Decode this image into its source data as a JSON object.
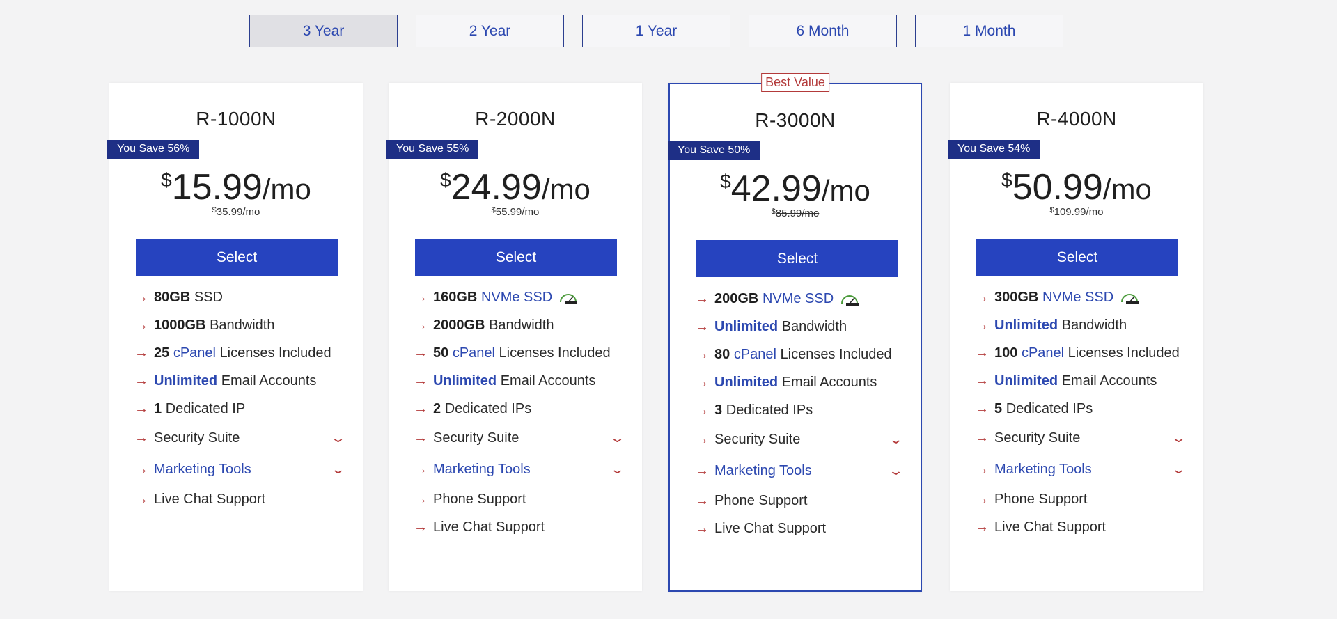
{
  "terms": [
    {
      "label": "3 Year",
      "active": true
    },
    {
      "label": "2 Year",
      "active": false
    },
    {
      "label": "1 Year",
      "active": false
    },
    {
      "label": "6 Month",
      "active": false
    },
    {
      "label": "1 Month",
      "active": false
    }
  ],
  "colors": {
    "accent": "#2643bf",
    "badge": "#1e2f86",
    "arrow": "#b33a3a",
    "link": "#2c48b0"
  },
  "plans": [
    {
      "name": "R-1000N",
      "save": "You Save 56%",
      "currency": "$",
      "price": "15.99",
      "per": "/mo",
      "old_price": "35.99/mo",
      "select_label": "Select",
      "f1_bold": "80GB",
      "f1_text": "SSD",
      "f2_bold": "1000GB",
      "f2_text": "Bandwidth",
      "f3_bold": "25",
      "f3_link": "cPanel",
      "f3_text": "Licenses Included",
      "f4_bold": "Unlimited",
      "f4_text": "Email Accounts",
      "f5_bold": "1",
      "f5_text": "Dedicated IP",
      "f6_text": "Security Suite",
      "f7_text": "Marketing Tools",
      "f8_text": "Live Chat Support"
    },
    {
      "name": "R-2000N",
      "save": "You Save 55%",
      "currency": "$",
      "price": "24.99",
      "per": "/mo",
      "old_price": "55.99/mo",
      "select_label": "Select",
      "f1_bold": "160GB",
      "f1_link": "NVMe SSD",
      "speed_icon": "speed-gauge-icon",
      "f2_bold": "2000GB",
      "f2_text": "Bandwidth",
      "f3_bold": "50",
      "f3_link": "cPanel",
      "f3_text": "Licenses Included",
      "f4_bold": "Unlimited",
      "f4_text": "Email Accounts",
      "f5_bold": "2",
      "f5_text": "Dedicated IPs",
      "f6_text": "Security Suite",
      "f7_text": "Marketing Tools",
      "f8_text": "Phone Support",
      "f9_text": "Live Chat Support"
    },
    {
      "name": "R-3000N",
      "save": "You Save 50%",
      "best_value": "Best Value",
      "currency": "$",
      "price": "42.99",
      "per": "/mo",
      "old_price": "85.99/mo",
      "select_label": "Select",
      "f1_bold": "200GB",
      "f1_link": "NVMe SSD",
      "speed_icon": "speed-gauge-icon",
      "f2_bold": "Unlimited",
      "f2_text": "Bandwidth",
      "f3_bold": "80",
      "f3_link": "cPanel",
      "f3_text": "Licenses Included",
      "f4_bold": "Unlimited",
      "f4_text": "Email Accounts",
      "f5_bold": "3",
      "f5_text": "Dedicated IPs",
      "f6_text": "Security Suite",
      "f7_text": "Marketing Tools",
      "f8_text": "Phone Support",
      "f9_text": "Live Chat Support"
    },
    {
      "name": "R-4000N",
      "save": "You Save 54%",
      "currency": "$",
      "price": "50.99",
      "per": "/mo",
      "old_price": "109.99/mo",
      "select_label": "Select",
      "f1_bold": "300GB",
      "f1_link": "NVMe SSD",
      "speed_icon": "speed-gauge-icon",
      "f2_bold": "Unlimited",
      "f2_text": "Bandwidth",
      "f3_bold": "100",
      "f3_link": "cPanel",
      "f3_text": "Licenses Included",
      "f4_bold": "Unlimited",
      "f4_text": "Email Accounts",
      "f5_bold": "5",
      "f5_text": "Dedicated IPs",
      "f6_text": "Security Suite",
      "f7_text": "Marketing Tools",
      "f8_text": "Phone Support",
      "f9_text": "Live Chat Support"
    }
  ]
}
